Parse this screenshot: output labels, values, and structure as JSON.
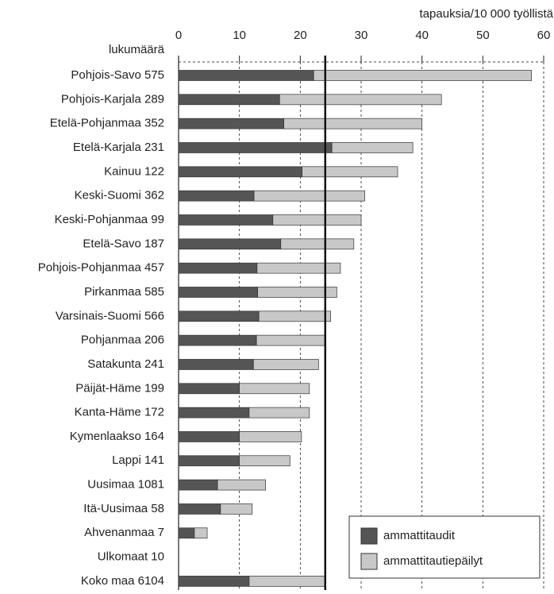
{
  "chart_data": {
    "type": "bar",
    "orientation": "horizontal",
    "stacked": true,
    "x_axis_label": "tapauksia/10 000 työllistä",
    "category_axis_label": "lukumäärä",
    "categories": [
      "Pohjois-Savo 575",
      "Pohjois-Karjala 289",
      "Etelä-Pohjanmaa 352",
      "Etelä-Karjala 231",
      "Kainuu 122",
      "Keski-Suomi 362",
      "Keski-Pohjanmaa 99",
      "Etelä-Savo 187",
      "Pohjois-Pohjanmaa 457",
      "Pirkanmaa 585",
      "Varsinais-Suomi 566",
      "Pohjanmaa 206",
      "Satakunta 241",
      "Päijät-Häme 199",
      "Kanta-Häme 172",
      "Kymenlaakso 164",
      "Lappi 141",
      "Uusimaa 1081",
      "Itä-Uusimaa 58",
      "Ahvenanmaa 7",
      "Ulkomaat 10",
      "Koko maa 6104"
    ],
    "series": [
      {
        "name": "ammattitaudit",
        "color": "#555555",
        "values": [
          22.2,
          16.6,
          17.3,
          25.2,
          20.3,
          12.4,
          15.5,
          16.8,
          12.9,
          13.0,
          13.2,
          12.8,
          12.3,
          10.0,
          11.6,
          10.0,
          10.0,
          6.4,
          6.9,
          2.6,
          null,
          11.6
        ]
      },
      {
        "name": "ammattitautiepäilyt",
        "color": "#c8c8c8",
        "values": [
          35.8,
          26.6,
          22.7,
          13.3,
          15.7,
          18.2,
          14.5,
          12.0,
          13.7,
          13.0,
          11.8,
          11.3,
          10.7,
          11.5,
          9.9,
          10.2,
          8.3,
          7.9,
          5.2,
          2.1,
          null,
          12.5
        ]
      }
    ],
    "reference_value": 24.1,
    "xlim": [
      0,
      60
    ],
    "xticks": [
      0,
      10,
      20,
      30,
      40,
      50,
      60
    ],
    "grid": true,
    "legend": "lower right"
  }
}
